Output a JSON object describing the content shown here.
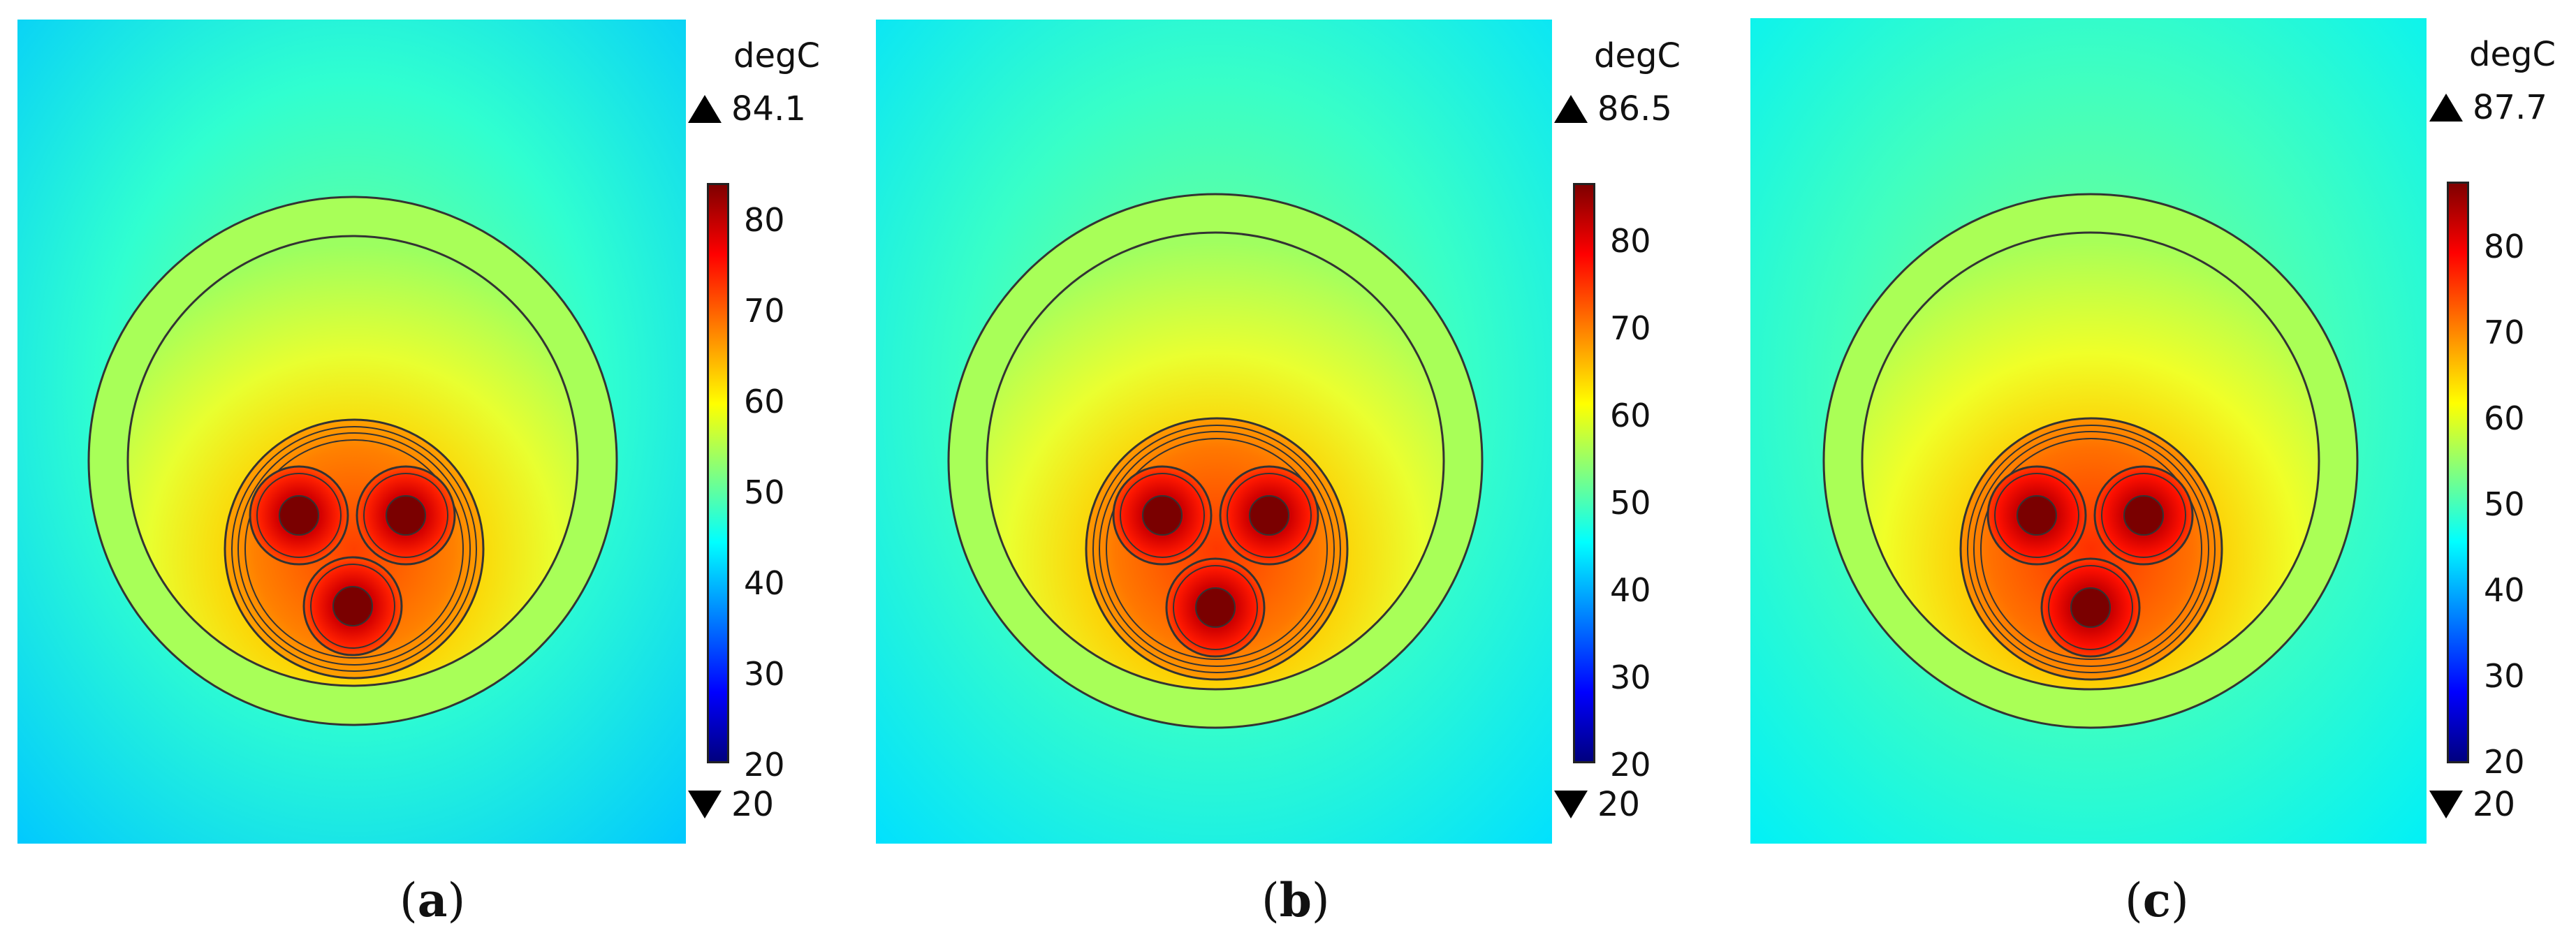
{
  "panels": [
    {
      "caption_letter": "a",
      "unit": "degC",
      "max_label": "84.1",
      "min_label": "20",
      "ticks": [
        "80",
        "70",
        "60",
        "50",
        "40",
        "30",
        "20"
      ],
      "range_max": 84.1,
      "range_min": 20
    },
    {
      "caption_letter": "b",
      "unit": "degC",
      "max_label": "86.5",
      "min_label": "20",
      "ticks": [
        "80",
        "70",
        "60",
        "50",
        "40",
        "30",
        "20"
      ],
      "range_max": 86.5,
      "range_min": 20
    },
    {
      "caption_letter": "c",
      "unit": "degC",
      "max_label": "87.7",
      "min_label": "20",
      "ticks": [
        "80",
        "70",
        "60",
        "50",
        "40",
        "30",
        "20"
      ],
      "range_max": 87.7,
      "range_min": 20
    }
  ],
  "colormap": [
    "#00007f",
    "#0000ff",
    "#0080ff",
    "#00ffff",
    "#80ff80",
    "#ffff00",
    "#ff8000",
    "#ff0000",
    "#7f0000"
  ]
}
